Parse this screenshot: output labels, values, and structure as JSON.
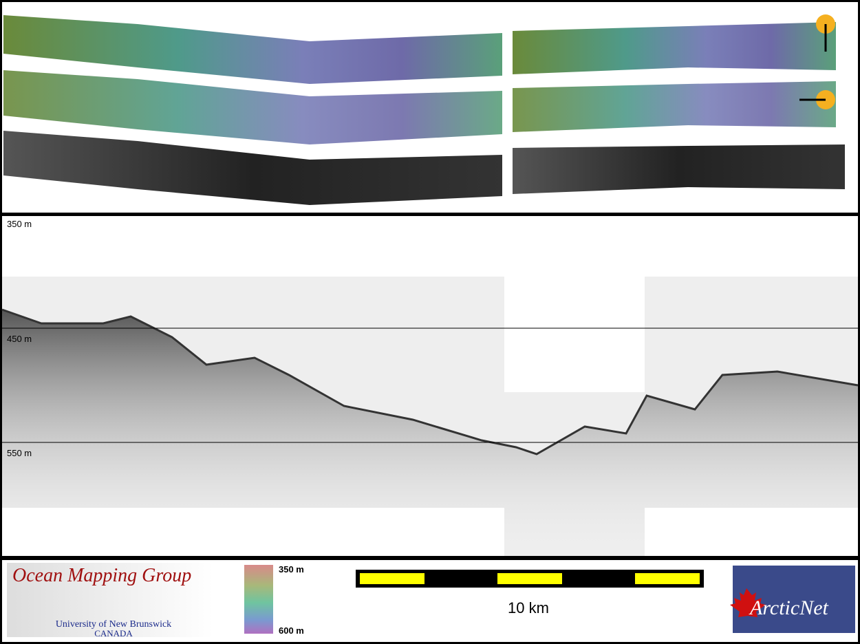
{
  "profile": {
    "depth_labels": [
      "350 m",
      "450 m",
      "550 m"
    ]
  },
  "legend": {
    "colorbar": {
      "top_label": "350 m",
      "bottom_label": "600 m"
    },
    "scale_bar": {
      "label": "10 km"
    }
  },
  "logos": {
    "ocean_mapping_group": {
      "title": "Ocean Mapping Group",
      "institution": "University of New Brunswick",
      "country": "CANADA"
    },
    "arcticnet": {
      "name": "ArcticNet"
    }
  }
}
